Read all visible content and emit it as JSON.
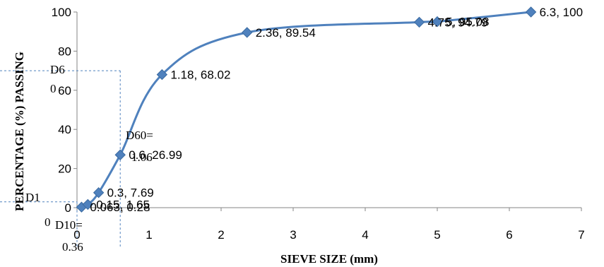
{
  "chart_data": {
    "type": "scatter",
    "title": "",
    "xlabel": "SIEVE SIZE (mm)",
    "ylabel": "PERCENTAGE (%) PASSING",
    "xlim": [
      0,
      7
    ],
    "ylim": [
      0,
      100
    ],
    "x_ticks": [
      "0",
      "1",
      "2",
      "3",
      "4",
      "5",
      "6",
      "7"
    ],
    "y_ticks": [
      "0",
      "20",
      "40",
      "60",
      "80",
      "100"
    ],
    "grid": false,
    "smooth_line": true,
    "marker": "diamond",
    "series_color": "#4F81BD",
    "guide_color": "#4F81BD",
    "points": [
      {
        "x": 0.063,
        "y": 0.28,
        "label": "0.063, 0.28"
      },
      {
        "x": 0.15,
        "y": 1.65,
        "label": "0.15, 1.65"
      },
      {
        "x": 0.3,
        "y": 7.69,
        "label": "0.3, 7.69"
      },
      {
        "x": 0.6,
        "y": 26.99,
        "label": "0.6, 26.99"
      },
      {
        "x": 1.18,
        "y": 68.02,
        "label": "1.18, 68.02"
      },
      {
        "x": 2.36,
        "y": 89.54,
        "label": "2.36, 89.54"
      },
      {
        "x": 4.75,
        "y": 94.79,
        "label": "4.75, 94.79"
      },
      {
        "x": 5.0,
        "y": 95.08,
        "label": "5, 95.08"
      },
      {
        "x": 6.3,
        "y": 100,
        "label": "6.3, 100"
      }
    ],
    "annotations": {
      "d60_text": "D60=",
      "d60_value": "1.06",
      "d60_left": "D6",
      "d60_left_value": "0",
      "d10_left": "D1",
      "d10_left_value": "0",
      "d10_text": "D10=",
      "d10_value": "0.36"
    },
    "guides": [
      {
        "x": 0.6,
        "y": 70
      },
      {
        "x": 0.0,
        "y": 3
      }
    ]
  }
}
